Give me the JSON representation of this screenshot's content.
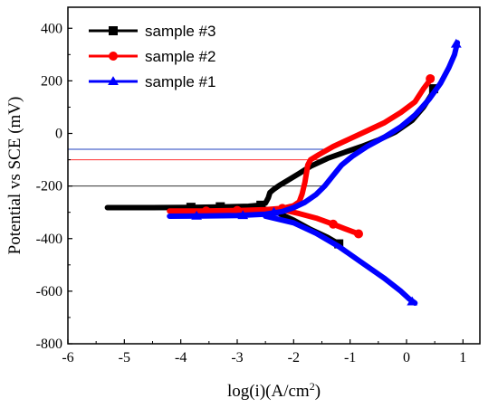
{
  "chart_data": {
    "type": "line",
    "title": "",
    "xlabel_base": "log(i)(A/cm",
    "xlabel_sup": "2",
    "xlabel_end": ")",
    "ylabel": "Potential vs SCE (mV)",
    "xlim": [
      -6,
      1.3
    ],
    "ylim": [
      -800,
      480
    ],
    "x_ticks": [
      "-6",
      "-5",
      "-4",
      "-3",
      "-2",
      "-1",
      "0",
      "1"
    ],
    "y_ticks": [
      "-800",
      "-600",
      "-400",
      "-200",
      "0",
      "200",
      "400"
    ],
    "grid": false,
    "legend_position": "top-left",
    "series": [
      {
        "name": "sample #3",
        "color": "#000000",
        "marker": "square",
        "anodic": [
          [
            -5.3,
            -282
          ],
          [
            -4.5,
            -282
          ],
          [
            -3.8,
            -281
          ],
          [
            -3.2,
            -279
          ],
          [
            -2.8,
            -277
          ],
          [
            -2.6,
            -273
          ],
          [
            -2.5,
            -265
          ],
          [
            -2.45,
            -245
          ],
          [
            -2.42,
            -225
          ],
          [
            -2.35,
            -212
          ],
          [
            -2.25,
            -197
          ],
          [
            -2.1,
            -178
          ],
          [
            -1.9,
            -152
          ],
          [
            -1.7,
            -125
          ],
          [
            -1.4,
            -95
          ],
          [
            -1.1,
            -72
          ],
          [
            -0.8,
            -50
          ],
          [
            -0.5,
            -25
          ],
          [
            -0.2,
            5
          ],
          [
            0.1,
            50
          ],
          [
            0.3,
            100
          ],
          [
            0.45,
            150
          ],
          [
            0.5,
            175
          ]
        ],
        "cathodic": [
          [
            -2.6,
            -283
          ],
          [
            -2.3,
            -300
          ],
          [
            -2.0,
            -330
          ],
          [
            -1.7,
            -365
          ],
          [
            -1.4,
            -395
          ],
          [
            -1.2,
            -420
          ]
        ],
        "markers": [
          [
            -3.82,
            -281
          ],
          [
            -3.3,
            -279
          ],
          [
            -2.58,
            -273
          ],
          [
            -1.2,
            -420
          ],
          [
            0.48,
            170
          ]
        ]
      },
      {
        "name": "sample #2",
        "color": "#ff0000",
        "marker": "circle",
        "anodic": [
          [
            -4.2,
            -295
          ],
          [
            -3.6,
            -295
          ],
          [
            -3.0,
            -293
          ],
          [
            -2.5,
            -290
          ],
          [
            -2.2,
            -285
          ],
          [
            -2.0,
            -275
          ],
          [
            -1.9,
            -260
          ],
          [
            -1.85,
            -230
          ],
          [
            -1.8,
            -185
          ],
          [
            -1.75,
            -120
          ],
          [
            -1.7,
            -100
          ],
          [
            -1.55,
            -80
          ],
          [
            -1.3,
            -50
          ],
          [
            -1.0,
            -20
          ],
          [
            -0.7,
            10
          ],
          [
            -0.4,
            40
          ],
          [
            -0.1,
            80
          ],
          [
            0.15,
            120
          ],
          [
            0.3,
            170
          ],
          [
            0.45,
            212
          ]
        ],
        "cathodic": [
          [
            -2.2,
            -290
          ],
          [
            -1.9,
            -305
          ],
          [
            -1.6,
            -322
          ],
          [
            -1.3,
            -345
          ],
          [
            -1.1,
            -362
          ],
          [
            -0.85,
            -382
          ]
        ],
        "markers": [
          [
            -3.55,
            -295
          ],
          [
            -3.0,
            -293
          ],
          [
            -2.2,
            -285
          ],
          [
            -1.3,
            -345
          ],
          [
            -0.85,
            -382
          ],
          [
            0.42,
            208
          ]
        ]
      },
      {
        "name": "sample #1",
        "color": "#0000ff",
        "marker": "triangle",
        "anodic": [
          [
            -4.2,
            -315
          ],
          [
            -3.6,
            -314
          ],
          [
            -3.0,
            -312
          ],
          [
            -2.5,
            -307
          ],
          [
            -2.2,
            -297
          ],
          [
            -2.0,
            -282
          ],
          [
            -1.8,
            -262
          ],
          [
            -1.6,
            -232
          ],
          [
            -1.45,
            -200
          ],
          [
            -1.3,
            -160
          ],
          [
            -1.15,
            -120
          ],
          [
            -0.95,
            -85
          ],
          [
            -0.7,
            -50
          ],
          [
            -0.4,
            -15
          ],
          [
            -0.1,
            25
          ],
          [
            0.15,
            70
          ],
          [
            0.4,
            130
          ],
          [
            0.6,
            190
          ],
          [
            0.75,
            250
          ],
          [
            0.85,
            300
          ],
          [
            0.9,
            345
          ]
        ],
        "cathodic": [
          [
            -2.5,
            -315
          ],
          [
            -2.0,
            -340
          ],
          [
            -1.6,
            -380
          ],
          [
            -1.2,
            -430
          ],
          [
            -0.8,
            -490
          ],
          [
            -0.4,
            -550
          ],
          [
            -0.1,
            -600
          ],
          [
            0.05,
            -630
          ],
          [
            0.15,
            -645
          ]
        ],
        "markers": [
          [
            -3.72,
            -314
          ],
          [
            -2.9,
            -312
          ],
          [
            -2.35,
            -300
          ],
          [
            0.1,
            -640
          ],
          [
            0.88,
            340
          ]
        ]
      }
    ],
    "reference_lines": [
      {
        "y": -60,
        "color": "#1f3fbf"
      },
      {
        "y": -100,
        "color": "#ff3030"
      },
      {
        "y": -200,
        "color": "#333333"
      }
    ]
  }
}
